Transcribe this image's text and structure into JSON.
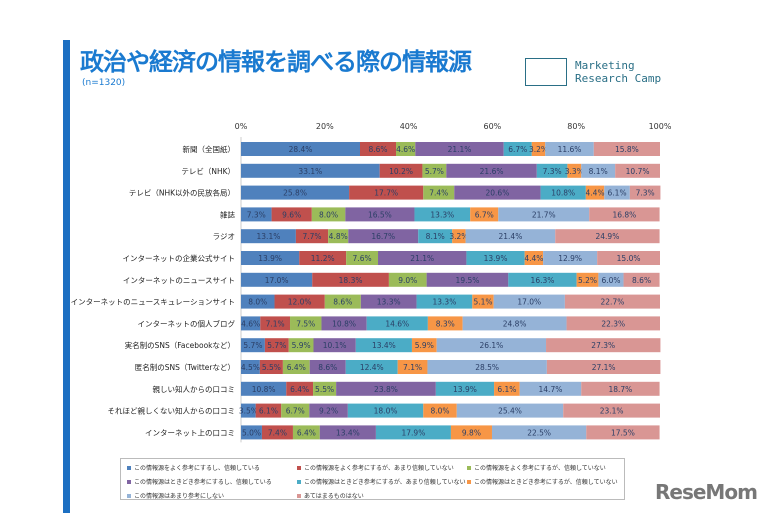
{
  "title": "政治や経済の情報を調べる際の情報源",
  "subtitle": "(n=1320)",
  "logo": {
    "line1": "Marketing",
    "line2": "Research Camp"
  },
  "watermark": "ReseMom",
  "colors": [
    "#4f81bd",
    "#c0504d",
    "#9bbb59",
    "#8064a2",
    "#4bacc6",
    "#f79646",
    "#95b3d7",
    "#d99694"
  ],
  "chart_data": {
    "type": "bar",
    "orientation": "horizontal-stacked-100",
    "xlim": [
      0,
      100
    ],
    "xticks": [
      "0%",
      "20%",
      "40%",
      "60%",
      "80%",
      "100%"
    ],
    "legend_position": "bottom",
    "categories": [
      "新聞（全国紙）",
      "テレビ（NHK）",
      "テレビ（NHK以外の民放各局）",
      "雑誌",
      "ラジオ",
      "インターネットの企業公式サイト",
      "インターネットのニュースサイト",
      "インターネットのニュースキュレーションサイト",
      "インターネットの個人ブログ",
      "実名制のSNS（Facebookなど）",
      "匿名制のSNS（Twitterなど）",
      "親しい知人からの口コミ",
      "それほど親しくない知人からの口コミ",
      "インターネット上の口コミ"
    ],
    "series": [
      {
        "name": "この情報源をよく参考にするし、信頼している",
        "values": [
          28.4,
          33.1,
          25.8,
          7.3,
          13.1,
          13.9,
          17.0,
          8.0,
          4.6,
          5.7,
          4.5,
          10.8,
          3.5,
          5.0
        ]
      },
      {
        "name": "この情報源をよく参考にするが、あまり信頼していない",
        "values": [
          8.6,
          10.2,
          17.7,
          9.6,
          7.7,
          11.2,
          18.3,
          12.0,
          7.1,
          5.7,
          5.5,
          6.4,
          6.1,
          7.4
        ]
      },
      {
        "name": "この情報源をよく参考にするが、信頼していない",
        "values": [
          4.6,
          5.7,
          7.4,
          8.0,
          4.8,
          7.6,
          9.0,
          8.6,
          7.5,
          5.9,
          6.4,
          5.5,
          6.7,
          6.4
        ]
      },
      {
        "name": "この情報源はときどき参考にするし、信頼している",
        "values": [
          21.1,
          21.6,
          20.6,
          16.5,
          16.7,
          21.1,
          19.5,
          13.3,
          10.8,
          10.1,
          8.6,
          23.8,
          9.2,
          13.4
        ]
      },
      {
        "name": "この情報源はときどき参考にするが、あまり信頼していない",
        "values": [
          6.7,
          7.3,
          10.8,
          13.3,
          8.1,
          13.9,
          16.3,
          13.3,
          14.6,
          13.4,
          12.4,
          13.9,
          18.0,
          17.9
        ]
      },
      {
        "name": "この情報源はときどき参考にするが、信頼していない",
        "values": [
          3.2,
          3.3,
          4.4,
          6.7,
          3.2,
          4.4,
          5.2,
          5.1,
          8.3,
          5.9,
          7.1,
          6.1,
          8.0,
          9.8
        ]
      },
      {
        "name": "この情報源はあまり参考にしない",
        "values": [
          11.6,
          8.1,
          6.1,
          21.7,
          21.4,
          12.9,
          6.0,
          17.0,
          24.8,
          26.1,
          28.5,
          14.7,
          25.4,
          22.5
        ]
      },
      {
        "name": "あてはまるものはない",
        "values": [
          15.8,
          10.7,
          7.3,
          16.8,
          24.9,
          15.0,
          8.6,
          22.7,
          22.3,
          27.3,
          27.1,
          18.7,
          23.1,
          17.5
        ]
      }
    ]
  }
}
